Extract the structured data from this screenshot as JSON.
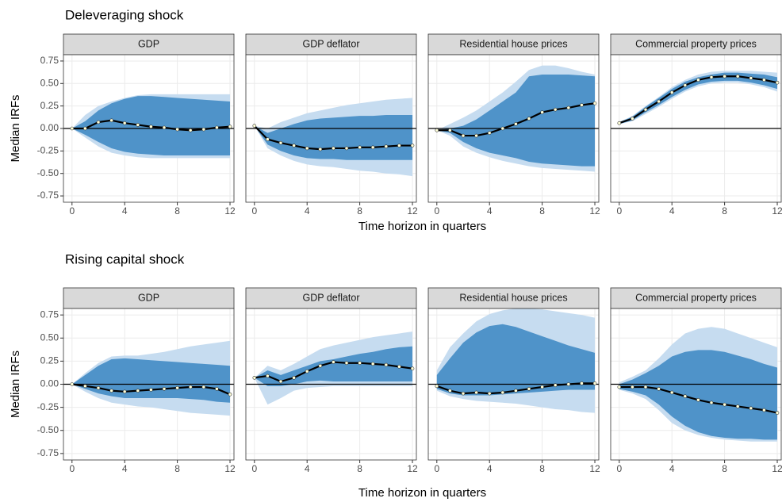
{
  "chart_data": [
    {
      "type": "line",
      "title": "Deleveraging shock",
      "ylabel": "Median IRFs",
      "xlabel": "Time horizon in quarters",
      "x": [
        0,
        1,
        2,
        3,
        4,
        5,
        6,
        7,
        8,
        9,
        10,
        11,
        12
      ],
      "xlim": [
        -0.65,
        12.3
      ],
      "xticks": [
        0,
        4,
        8,
        12
      ],
      "ylim": [
        -0.82,
        0.82
      ],
      "yticks": [
        -0.75,
        {
          "value": -0.5,
          "label": "-0.50"
        },
        -0.25,
        {
          "value": 0,
          "label": "0.00"
        },
        0.25,
        {
          "value": 0.5,
          "label": "0.50"
        },
        0.75
      ],
      "hline": 0,
      "grid": true,
      "line_color": "#000000",
      "band_colors": [
        "#c6dcf0",
        "#4f93c9"
      ],
      "facets": [
        {
          "title": "GDP",
          "values": [
            0,
            0.0,
            0.07,
            0.09,
            0.06,
            0.04,
            0.02,
            0.01,
            -0.01,
            -0.02,
            -0.01,
            0.01,
            0.02
          ],
          "bands": [
            {
              "upper": [
                0,
                0.15,
                0.25,
                0.3,
                0.34,
                0.37,
                0.38,
                0.38,
                0.38,
                0.38,
                0.38,
                0.38,
                0.38
              ],
              "lower": [
                0,
                -0.1,
                -0.2,
                -0.27,
                -0.3,
                -0.32,
                -0.33,
                -0.33,
                -0.33,
                -0.33,
                -0.33,
                -0.33,
                -0.33
              ]
            },
            {
              "upper": [
                0,
                0.08,
                0.2,
                0.28,
                0.33,
                0.36,
                0.36,
                0.35,
                0.34,
                0.33,
                0.32,
                0.31,
                0.3
              ],
              "lower": [
                0,
                -0.07,
                -0.15,
                -0.22,
                -0.26,
                -0.28,
                -0.29,
                -0.3,
                -0.3,
                -0.3,
                -0.3,
                -0.3,
                -0.3
              ]
            }
          ]
        },
        {
          "title": "GDP deflator",
          "values": [
            0.03,
            -0.12,
            -0.16,
            -0.19,
            -0.22,
            -0.23,
            -0.22,
            -0.22,
            -0.21,
            -0.21,
            -0.2,
            -0.19,
            -0.19
          ],
          "bands": [
            {
              "upper": [
                0.03,
                0.0,
                0.07,
                0.12,
                0.17,
                0.2,
                0.23,
                0.26,
                0.28,
                0.3,
                0.32,
                0.33,
                0.34
              ],
              "lower": [
                0.03,
                -0.22,
                -0.3,
                -0.36,
                -0.4,
                -0.42,
                -0.43,
                -0.45,
                -0.47,
                -0.48,
                -0.5,
                -0.51,
                -0.53
              ]
            },
            {
              "upper": [
                0.03,
                -0.05,
                0.0,
                0.05,
                0.09,
                0.11,
                0.12,
                0.13,
                0.14,
                0.14,
                0.15,
                0.15,
                0.15
              ],
              "lower": [
                0.03,
                -0.18,
                -0.25,
                -0.3,
                -0.33,
                -0.34,
                -0.34,
                -0.35,
                -0.35,
                -0.35,
                -0.35,
                -0.35,
                -0.35
              ]
            }
          ]
        },
        {
          "title": "Residential house prices",
          "values": [
            -0.02,
            -0.02,
            -0.08,
            -0.08,
            -0.05,
            0.0,
            0.05,
            0.11,
            0.18,
            0.21,
            0.23,
            0.26,
            0.28
          ],
          "bands": [
            {
              "upper": [
                -0.02,
                0.05,
                0.12,
                0.2,
                0.3,
                0.4,
                0.52,
                0.65,
                0.7,
                0.7,
                0.67,
                0.63,
                0.6
              ],
              "lower": [
                -0.02,
                -0.08,
                -0.2,
                -0.27,
                -0.32,
                -0.36,
                -0.39,
                -0.42,
                -0.44,
                -0.45,
                -0.46,
                -0.47,
                -0.48
              ]
            },
            {
              "upper": [
                -0.02,
                0.0,
                0.03,
                0.1,
                0.2,
                0.3,
                0.4,
                0.58,
                0.6,
                0.6,
                0.6,
                0.59,
                0.58
              ],
              "lower": [
                -0.02,
                -0.05,
                -0.15,
                -0.22,
                -0.27,
                -0.3,
                -0.33,
                -0.37,
                -0.39,
                -0.4,
                -0.41,
                -0.42,
                -0.42
              ]
            }
          ]
        },
        {
          "title": "Commercial property prices",
          "values": [
            0.06,
            0.11,
            0.21,
            0.3,
            0.4,
            0.48,
            0.54,
            0.57,
            0.58,
            0.58,
            0.56,
            0.54,
            0.51
          ],
          "bands": [
            {
              "upper": [
                0.07,
                0.14,
                0.25,
                0.35,
                0.46,
                0.54,
                0.6,
                0.63,
                0.64,
                0.64,
                0.64,
                0.63,
                0.62
              ],
              "lower": [
                0.05,
                0.08,
                0.16,
                0.24,
                0.33,
                0.41,
                0.47,
                0.5,
                0.51,
                0.51,
                0.49,
                0.46,
                0.41
              ]
            },
            {
              "upper": [
                0.07,
                0.13,
                0.24,
                0.34,
                0.44,
                0.52,
                0.57,
                0.6,
                0.62,
                0.62,
                0.61,
                0.6,
                0.57
              ],
              "lower": [
                0.05,
                0.09,
                0.18,
                0.26,
                0.35,
                0.43,
                0.49,
                0.52,
                0.53,
                0.53,
                0.51,
                0.48,
                0.44
              ]
            }
          ]
        }
      ]
    },
    {
      "type": "line",
      "title": "Rising capital shock",
      "ylabel": "Median IRFs",
      "xlabel": "Time horizon in quarters",
      "x": [
        0,
        1,
        2,
        3,
        4,
        5,
        6,
        7,
        8,
        9,
        10,
        11,
        12
      ],
      "xlim": [
        -0.65,
        12.3
      ],
      "xticks": [
        0,
        4,
        8,
        12
      ],
      "ylim": [
        -0.82,
        0.82
      ],
      "yticks": [
        -0.75,
        {
          "value": -0.5,
          "label": "-0.50"
        },
        -0.25,
        {
          "value": 0,
          "label": "0.00"
        },
        0.25,
        {
          "value": 0.5,
          "label": "0.50"
        },
        0.75
      ],
      "hline": 0,
      "grid": true,
      "line_color": "#000000",
      "band_colors": [
        "#c6dcf0",
        "#4f93c9"
      ],
      "facets": [
        {
          "title": "GDP",
          "values": [
            0,
            -0.02,
            -0.04,
            -0.07,
            -0.08,
            -0.07,
            -0.06,
            -0.05,
            -0.04,
            -0.03,
            -0.03,
            -0.05,
            -0.11
          ],
          "bands": [
            {
              "upper": [
                0,
                0.12,
                0.23,
                0.3,
                0.31,
                0.31,
                0.33,
                0.35,
                0.38,
                0.41,
                0.43,
                0.45,
                0.47
              ],
              "lower": [
                0,
                -0.08,
                -0.15,
                -0.2,
                -0.22,
                -0.24,
                -0.25,
                -0.27,
                -0.29,
                -0.31,
                -0.32,
                -0.33,
                -0.34
              ]
            },
            {
              "upper": [
                0,
                0.1,
                0.2,
                0.27,
                0.28,
                0.27,
                0.26,
                0.25,
                0.24,
                0.23,
                0.22,
                0.21,
                0.2
              ],
              "lower": [
                0,
                -0.05,
                -0.1,
                -0.13,
                -0.15,
                -0.15,
                -0.15,
                -0.15,
                -0.15,
                -0.16,
                -0.17,
                -0.19,
                -0.2
              ]
            }
          ]
        },
        {
          "title": "GDP deflator",
          "values": [
            0.07,
            0.09,
            0.03,
            0.07,
            0.14,
            0.2,
            0.24,
            0.23,
            0.23,
            0.22,
            0.21,
            0.19,
            0.17
          ],
          "bands": [
            {
              "upper": [
                0.07,
                0.2,
                0.15,
                0.22,
                0.3,
                0.38,
                0.42,
                0.45,
                0.48,
                0.51,
                0.53,
                0.55,
                0.57
              ],
              "lower": [
                0.07,
                -0.22,
                -0.15,
                -0.07,
                -0.04,
                -0.03,
                -0.02,
                -0.02,
                -0.02,
                -0.02,
                -0.02,
                -0.02,
                -0.02
              ]
            },
            {
              "upper": [
                0.07,
                0.15,
                0.1,
                0.15,
                0.2,
                0.25,
                0.27,
                0.3,
                0.33,
                0.35,
                0.38,
                0.4,
                0.41
              ],
              "lower": [
                0.07,
                -0.02,
                -0.02,
                0.0,
                0.03,
                0.04,
                0.03,
                0.03,
                0.03,
                0.03,
                0.03,
                0.03,
                0.03
              ]
            }
          ]
        },
        {
          "title": "Residential house prices",
          "values": [
            -0.02,
            -0.07,
            -0.1,
            -0.09,
            -0.1,
            -0.09,
            -0.07,
            -0.05,
            -0.03,
            -0.01,
            0.0,
            0.01,
            0.01
          ],
          "bands": [
            {
              "upper": [
                0.15,
                0.4,
                0.55,
                0.68,
                0.76,
                0.8,
                0.82,
                0.82,
                0.81,
                0.79,
                0.77,
                0.75,
                0.72
              ],
              "lower": [
                -0.07,
                -0.13,
                -0.16,
                -0.18,
                -0.19,
                -0.2,
                -0.21,
                -0.23,
                -0.25,
                -0.27,
                -0.28,
                -0.3,
                -0.31
              ]
            },
            {
              "upper": [
                0.1,
                0.28,
                0.45,
                0.56,
                0.63,
                0.65,
                0.62,
                0.57,
                0.52,
                0.47,
                0.42,
                0.38,
                0.34
              ],
              "lower": [
                -0.05,
                -0.1,
                -0.12,
                -0.12,
                -0.12,
                -0.11,
                -0.1,
                -0.09,
                -0.08,
                -0.07,
                -0.06,
                -0.06,
                -0.06
              ]
            }
          ]
        },
        {
          "title": "Commercial property prices",
          "values": [
            -0.03,
            -0.03,
            -0.03,
            -0.05,
            -0.09,
            -0.13,
            -0.17,
            -0.2,
            -0.22,
            -0.24,
            -0.26,
            -0.28,
            -0.31
          ],
          "bands": [
            {
              "upper": [
                0.02,
                0.08,
                0.15,
                0.28,
                0.43,
                0.55,
                0.6,
                0.62,
                0.6,
                0.55,
                0.5,
                0.45,
                0.4
              ],
              "lower": [
                -0.06,
                -0.1,
                -0.16,
                -0.28,
                -0.42,
                -0.5,
                -0.55,
                -0.58,
                -0.6,
                -0.61,
                -0.62,
                -0.62,
                -0.62
              ]
            },
            {
              "upper": [
                0,
                0.05,
                0.12,
                0.2,
                0.3,
                0.35,
                0.37,
                0.37,
                0.35,
                0.31,
                0.27,
                0.22,
                0.18
              ],
              "lower": [
                -0.05,
                -0.08,
                -0.12,
                -0.22,
                -0.35,
                -0.45,
                -0.52,
                -0.56,
                -0.58,
                -0.59,
                -0.59,
                -0.6,
                -0.6
              ]
            }
          ]
        }
      ]
    }
  ]
}
